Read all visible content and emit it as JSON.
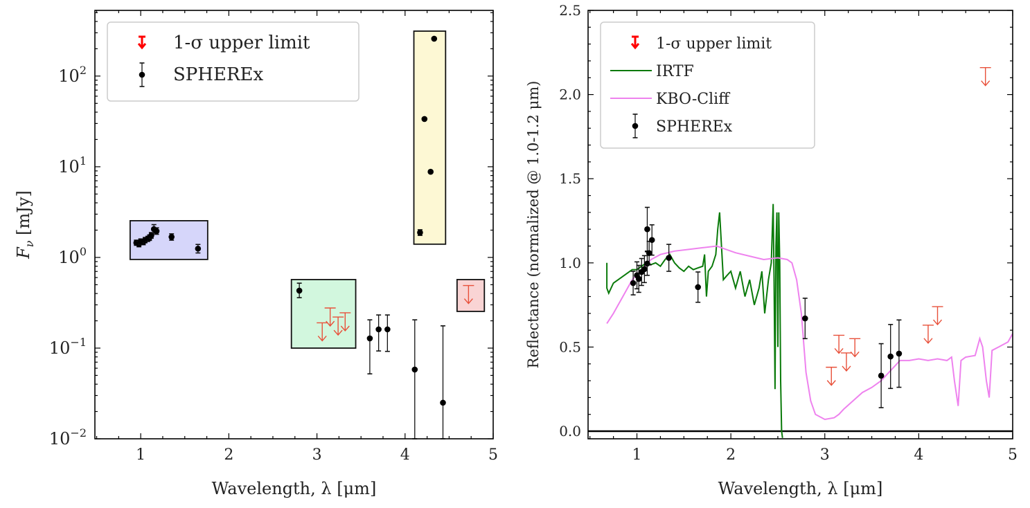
{
  "chart_data": [
    {
      "type": "scatter",
      "xlabel": "Wavelength, λ [μm]",
      "ylabel": "F",
      "ylabel_sub": "ν",
      "ylabel_unit": " [mJy]",
      "xlim": [
        0.48,
        5.0
      ],
      "ylim": [
        0.01,
        530
      ],
      "yscale": "log",
      "xticks": [
        1,
        2,
        3,
        4,
        5
      ],
      "xtick_labels": [
        "1",
        "2",
        "3",
        "4",
        "5"
      ],
      "yticks": [
        0.01,
        0.1,
        1,
        10,
        100
      ],
      "ytick_labels": [
        {
          "base": "10",
          "exp": "−2"
        },
        {
          "base": "10",
          "exp": "−1"
        },
        {
          "base": "10",
          "exp": "0"
        },
        {
          "base": "10",
          "exp": "1"
        },
        {
          "base": "10",
          "exp": "2"
        }
      ],
      "grid": false,
      "legend": {
        "placement": "top-left",
        "entries": [
          {
            "label": "1-σ upper limit",
            "marker": "upper-limit-arrow",
            "color": "#ff0000"
          },
          {
            "label": "SPHEREx",
            "marker": "errorbar-dot",
            "color": "#000000"
          }
        ]
      },
      "highlight_boxes": [
        {
          "x": [
            0.88,
            1.76
          ],
          "y": [
            0.95,
            2.54
          ],
          "color": "#d6d6fa"
        },
        {
          "x": [
            2.71,
            3.44
          ],
          "y": [
            0.1,
            0.57
          ],
          "color": "#d2f7de"
        },
        {
          "x": [
            4.1,
            4.46
          ],
          "y": [
            1.4,
            313
          ],
          "color": "#fdf8d4"
        },
        {
          "x": [
            4.59,
            4.9
          ],
          "y": [
            0.254,
            0.57
          ],
          "color": "#f9d4d4"
        }
      ],
      "series": [
        {
          "name": "SPHEREx",
          "color": "#000000",
          "points": [
            {
              "x": 0.95,
              "y": 1.45,
              "ylo": 1.36,
              "yhi": 1.55
            },
            {
              "x": 0.98,
              "y": 1.4,
              "ylo": 1.31,
              "yhi": 1.5
            },
            {
              "x": 1.0,
              "y": 1.5,
              "ylo": 1.4,
              "yhi": 1.6
            },
            {
              "x": 1.03,
              "y": 1.48,
              "ylo": 1.38,
              "yhi": 1.58
            },
            {
              "x": 1.05,
              "y": 1.55,
              "ylo": 1.45,
              "yhi": 1.66
            },
            {
              "x": 1.08,
              "y": 1.6,
              "ylo": 1.5,
              "yhi": 1.71
            },
            {
              "x": 1.1,
              "y": 1.65,
              "ylo": 1.54,
              "yhi": 1.77
            },
            {
              "x": 1.12,
              "y": 1.75,
              "ylo": 1.63,
              "yhi": 1.88
            },
            {
              "x": 1.15,
              "y": 2.05,
              "ylo": 1.85,
              "yhi": 2.3
            },
            {
              "x": 1.18,
              "y": 1.95,
              "ylo": 1.8,
              "yhi": 2.12
            },
            {
              "x": 1.35,
              "y": 1.68,
              "ylo": 1.55,
              "yhi": 1.82
            },
            {
              "x": 1.65,
              "y": 1.25,
              "ylo": 1.12,
              "yhi": 1.39
            },
            {
              "x": 2.8,
              "y": 0.43,
              "ylo": 0.36,
              "yhi": 0.52
            },
            {
              "x": 3.6,
              "y": 0.128,
              "ylo": 0.052,
              "yhi": 0.205
            },
            {
              "x": 3.7,
              "y": 0.161,
              "ylo": 0.093,
              "yhi": 0.232
            },
            {
              "x": 3.8,
              "y": 0.161,
              "ylo": 0.092,
              "yhi": 0.232
            },
            {
              "x": 4.11,
              "y": 0.058,
              "ylo": 0.0001,
              "yhi": 0.205
            },
            {
              "x": 4.17,
              "y": 1.88,
              "ylo": 1.75,
              "yhi": 2.02
            },
            {
              "x": 4.22,
              "y": 33.6,
              "ylo": 33.0,
              "yhi": 34.2
            },
            {
              "x": 4.29,
              "y": 8.8,
              "ylo": 8.6,
              "yhi": 9.0
            },
            {
              "x": 4.33,
              "y": 258,
              "ylo": 254,
              "yhi": 262
            },
            {
              "x": 4.43,
              "y": 0.025,
              "ylo": 0.0001,
              "yhi": 0.176
            }
          ]
        },
        {
          "name": "1-σ upper limit",
          "color": "#e8503a",
          "upper_limits": [
            {
              "x": 3.06,
              "y": 0.19
            },
            {
              "x": 3.15,
              "y": 0.277
            },
            {
              "x": 3.24,
              "y": 0.22
            },
            {
              "x": 3.32,
              "y": 0.245
            },
            {
              "x": 4.72,
              "y": 0.49
            }
          ]
        }
      ]
    },
    {
      "type": "line",
      "xlabel": "Wavelength, λ [μm]",
      "ylabel": "Reflectance (normalized @ 1.0-1.2 μm)",
      "xlim": [
        0.48,
        5.0
      ],
      "ylim": [
        -0.045,
        2.5
      ],
      "yscale": "linear",
      "xticks": [
        1,
        2,
        3,
        4,
        5
      ],
      "xtick_labels": [
        "1",
        "2",
        "3",
        "4",
        "5"
      ],
      "yticks": [
        0.0,
        0.5,
        1.0,
        1.5,
        2.0,
        2.5
      ],
      "ytick_labels": [
        "0.0",
        "0.5",
        "1.0",
        "1.5",
        "2.0",
        "2.5"
      ],
      "grid": false,
      "zero_line": true,
      "legend": {
        "placement": "top-left",
        "entries": [
          {
            "label": "1-σ upper limit",
            "marker": "upper-limit-arrow",
            "color": "#ff0000"
          },
          {
            "label": "IRTF",
            "marker": "line",
            "color": "#0a7a0a"
          },
          {
            "label": "KBO-Cliff",
            "marker": "line",
            "color": "#ee82ee"
          },
          {
            "label": "SPHEREx",
            "marker": "errorbar-dot",
            "color": "#000000"
          }
        ]
      },
      "series": [
        {
          "name": "IRTF",
          "color": "#0a7a0a",
          "x": [
            0.68,
            0.68,
            0.7,
            0.75,
            0.8,
            0.85,
            0.9,
            0.95,
            1.0,
            1.05,
            1.1,
            1.15,
            1.2,
            1.25,
            1.3,
            1.35,
            1.4,
            1.45,
            1.5,
            1.55,
            1.6,
            1.65,
            1.7,
            1.72,
            1.74,
            1.76,
            1.8,
            1.84,
            1.86,
            1.88,
            1.9,
            1.92,
            1.95,
            2.0,
            2.05,
            2.1,
            2.15,
            2.2,
            2.25,
            2.3,
            2.33,
            2.36,
            2.4,
            2.43,
            2.45,
            2.46,
            2.47,
            2.48,
            2.49,
            2.5,
            2.51,
            2.52,
            2.53,
            2.54,
            2.55
          ],
          "y": [
            1.0,
            0.85,
            0.82,
            0.88,
            0.9,
            0.92,
            0.94,
            0.96,
            0.96,
            0.98,
            1.0,
            0.99,
            1.0,
            0.98,
            1.02,
            1.05,
            1.0,
            0.97,
            0.95,
            0.98,
            0.96,
            0.97,
            0.98,
            1.05,
            0.8,
            0.95,
            0.98,
            1.05,
            1.2,
            1.3,
            1.1,
            0.9,
            0.92,
            0.95,
            0.85,
            0.95,
            0.8,
            0.9,
            0.75,
            0.85,
            0.95,
            0.7,
            0.9,
            1.0,
            1.35,
            0.9,
            0.25,
            1.1,
            1.3,
            0.5,
            1.3,
            1.0,
            0.3,
            0.0,
            -0.04
          ]
        },
        {
          "name": "KBO-Cliff",
          "color": "#ee82ee",
          "x": [
            0.68,
            0.75,
            0.85,
            0.95,
            1.05,
            1.15,
            1.25,
            1.4,
            1.55,
            1.7,
            1.85,
            1.95,
            2.05,
            2.2,
            2.35,
            2.5,
            2.6,
            2.65,
            2.7,
            2.75,
            2.8,
            2.85,
            2.9,
            3.0,
            3.1,
            3.15,
            3.2,
            3.3,
            3.4,
            3.5,
            3.6,
            3.7,
            3.8,
            3.9,
            4.0,
            4.1,
            4.2,
            4.3,
            4.35,
            4.38,
            4.42,
            4.45,
            4.5,
            4.6,
            4.65,
            4.68,
            4.72,
            4.75,
            4.78,
            4.85,
            4.95,
            5.0
          ],
          "y": [
            0.64,
            0.7,
            0.8,
            0.9,
            0.96,
            1.02,
            1.05,
            1.07,
            1.08,
            1.09,
            1.1,
            1.08,
            1.06,
            1.04,
            1.02,
            1.03,
            1.02,
            1.0,
            0.9,
            0.7,
            0.35,
            0.18,
            0.1,
            0.07,
            0.08,
            0.1,
            0.13,
            0.18,
            0.23,
            0.26,
            0.3,
            0.36,
            0.42,
            0.42,
            0.43,
            0.42,
            0.43,
            0.42,
            0.44,
            0.3,
            0.15,
            0.42,
            0.44,
            0.45,
            0.55,
            0.5,
            0.3,
            0.2,
            0.48,
            0.5,
            0.53,
            0.58
          ]
        },
        {
          "name": "SPHEREx",
          "color": "#000000",
          "points": [
            {
              "x": 0.96,
              "y": 0.88,
              "err": 0.07
            },
            {
              "x": 1.0,
              "y": 0.926,
              "err": 0.08
            },
            {
              "x": 1.02,
              "y": 0.905,
              "err": 0.08
            },
            {
              "x": 1.05,
              "y": 0.946,
              "err": 0.08
            },
            {
              "x": 1.08,
              "y": 0.963,
              "err": 0.08
            },
            {
              "x": 1.11,
              "y": 0.996,
              "err": 0.07
            },
            {
              "x": 1.11,
              "y": 1.2,
              "err": 0.13
            },
            {
              "x": 1.13,
              "y": 1.058,
              "err": 0.07
            },
            {
              "x": 1.16,
              "y": 1.136,
              "err": 0.09
            },
            {
              "x": 1.34,
              "y": 1.03,
              "err": 0.08
            },
            {
              "x": 1.65,
              "y": 0.856,
              "err": 0.09
            },
            {
              "x": 2.79,
              "y": 0.67,
              "err": 0.12
            },
            {
              "x": 3.6,
              "y": 0.33,
              "err": 0.19
            },
            {
              "x": 3.7,
              "y": 0.444,
              "err": 0.19
            },
            {
              "x": 3.79,
              "y": 0.461,
              "err": 0.2
            }
          ]
        },
        {
          "name": "1-σ upper limit",
          "color": "#e8503a",
          "upper_limits": [
            {
              "x": 3.07,
              "y": 0.38
            },
            {
              "x": 3.15,
              "y": 0.57
            },
            {
              "x": 3.23,
              "y": 0.465
            },
            {
              "x": 3.32,
              "y": 0.55
            },
            {
              "x": 4.1,
              "y": 0.63
            },
            {
              "x": 4.2,
              "y": 0.74
            },
            {
              "x": 4.71,
              "y": 2.16
            }
          ]
        }
      ]
    }
  ]
}
